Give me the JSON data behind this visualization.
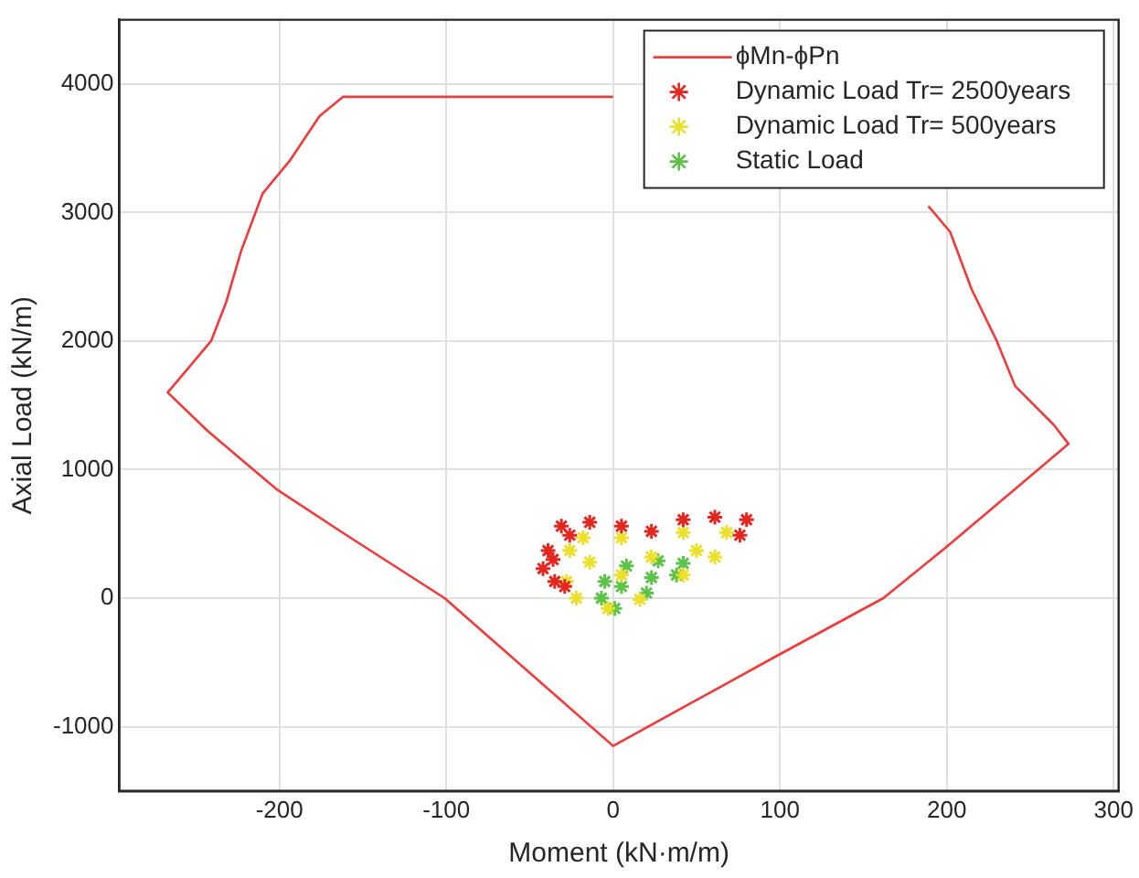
{
  "chart_data": {
    "type": "scatter",
    "xlabel": "Moment (kN·m/m)",
    "ylabel": "Axial Load (kN/m)",
    "xlim": [
      -296,
      303
    ],
    "ylim": [
      -1500,
      4500
    ],
    "xticks": [
      -200,
      -100,
      0,
      100,
      200,
      300
    ],
    "yticks": [
      -1000,
      0,
      1000,
      2000,
      3000,
      4000
    ],
    "grid": true,
    "legend": "top right",
    "series": [
      {
        "name": "ϕMn-ϕPn",
        "type": "line",
        "marker": "none",
        "line_style": "solid",
        "color": "#f03a3a",
        "x": [
          189,
          202,
          215,
          230,
          241,
          264,
          273,
          200,
          162,
          98,
          0,
          -101,
          -161,
          -202,
          -243,
          -267,
          -254,
          -241,
          -232,
          -223,
          -210,
          -194,
          -176,
          -162,
          0
        ],
        "values": [
          3050,
          2850,
          2400,
          2000,
          1650,
          1350,
          1200,
          400,
          0,
          -450,
          -1150,
          0,
          500,
          850,
          1300,
          1600,
          1800,
          2000,
          2300,
          2700,
          3150,
          3400,
          3750,
          3900,
          3900
        ]
      },
      {
        "name": "Dynamic Load Tr= 2500years",
        "type": "scatter",
        "marker": "cross",
        "color": "#e3261e",
        "x": [
          -42,
          -39,
          -31,
          -14,
          5,
          23,
          42,
          61,
          80,
          76,
          -35,
          -29,
          -36,
          -26
        ],
        "values": [
          230,
          370,
          560,
          590,
          560,
          520,
          610,
          630,
          610,
          490,
          130,
          90,
          300,
          490
        ]
      },
      {
        "name": "Dynamic Load Tr= 500years",
        "type": "scatter",
        "marker": "cross",
        "color": "#ebe02c",
        "x": [
          -26,
          -28,
          -22,
          -3,
          16,
          42,
          61,
          68,
          42,
          5,
          -18,
          -14,
          23,
          50,
          5
        ],
        "values": [
          370,
          130,
          0,
          -80,
          -10,
          180,
          320,
          510,
          510,
          470,
          470,
          280,
          320,
          370,
          180
        ]
      },
      {
        "name": "Static Load",
        "type": "scatter",
        "marker": "cross",
        "color": "#5cc24a",
        "x": [
          -5,
          -7,
          1,
          20,
          38,
          42,
          27,
          8,
          5,
          23
        ],
        "values": [
          130,
          0,
          -80,
          40,
          180,
          270,
          290,
          250,
          90,
          160
        ]
      }
    ]
  }
}
